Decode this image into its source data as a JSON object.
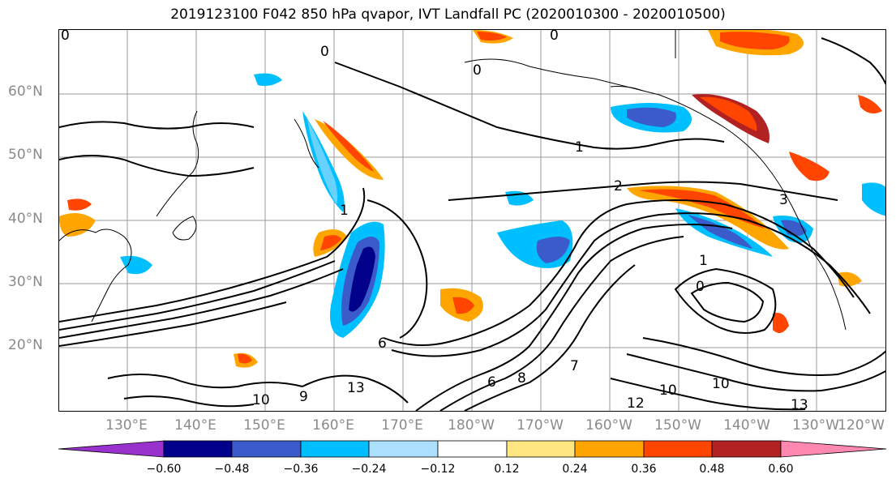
{
  "title": "2019123100 F042 850 hPa qvapor, IVT Landfall PC (2020010300 - 2020010500)",
  "lat_labels": [
    "60°N",
    "50°N",
    "40°N",
    "30°N",
    "20°N"
  ],
  "lon_labels": [
    "130°E",
    "140°E",
    "150°E",
    "160°E",
    "170°E",
    "180°W",
    "170°W",
    "160°W",
    "150°W",
    "140°W",
    "130°W",
    "120°W"
  ],
  "colorbar": {
    "colors": [
      "#9932CC",
      "#00008B",
      "#3A5BC9",
      "#00BFFF",
      "#ADDFFF",
      "#FFFFFF",
      "#FFE680",
      "#FFA500",
      "#FF4500",
      "#B22222",
      "#FF88B0"
    ],
    "tick_labels": [
      "−0.60",
      "−0.48",
      "−0.36",
      "−0.24",
      "−0.12",
      "0.12",
      "0.24",
      "0.36",
      "0.48",
      "0.60"
    ]
  },
  "contour_labels": [
    "0",
    "0",
    "0",
    "0",
    "1",
    "1",
    "2",
    "3",
    "0",
    "1",
    "6",
    "10",
    "10",
    "13",
    "9",
    "10",
    "12",
    "13",
    "6",
    "8",
    "7"
  ]
}
